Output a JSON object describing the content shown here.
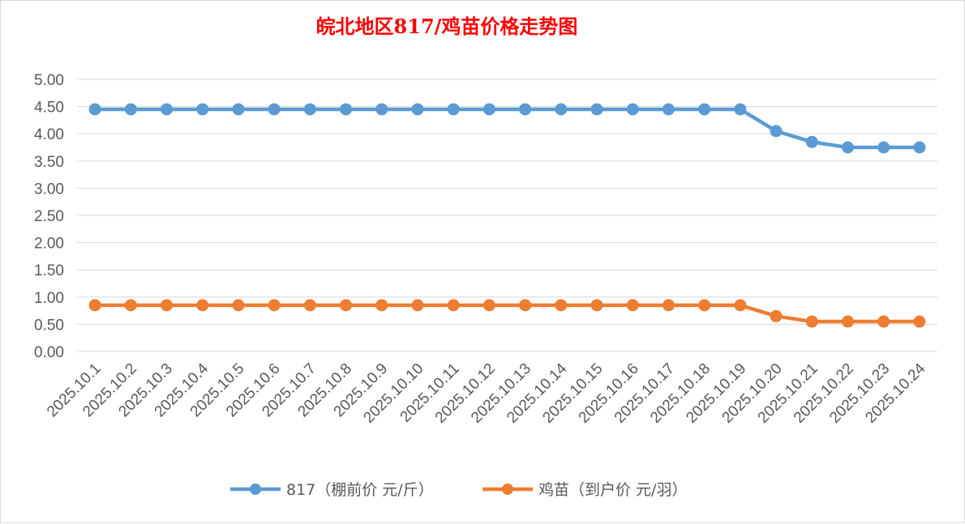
{
  "chart_data": {
    "type": "line",
    "title": "皖北地区817/鸡苗价格走势图",
    "xlabel": "",
    "ylabel": "",
    "ylim": [
      0,
      5
    ],
    "yticks": [
      "0.00",
      "0.50",
      "1.00",
      "1.50",
      "2.00",
      "2.50",
      "3.00",
      "3.50",
      "4.00",
      "4.50",
      "5.00"
    ],
    "grid": true,
    "legend_position": "bottom",
    "categories": [
      "2025.10.1",
      "2025.10.2",
      "2025.10.3",
      "2025.10.4",
      "2025.10.5",
      "2025.10.6",
      "2025.10.7",
      "2025.10.8",
      "2025.10.9",
      "2025.10.10",
      "2025.10.11",
      "2025.10.12",
      "2025.10.13",
      "2025.10.14",
      "2025.10.15",
      "2025.10.16",
      "2025.10.17",
      "2025.10.18",
      "2025.10.19",
      "2025.10.20",
      "2025.10.21",
      "2025.10.22",
      "2025.10.23",
      "2025.10.24"
    ],
    "series": [
      {
        "name": "817（棚前价 元/斤）",
        "color": "#5b9bd5",
        "values": [
          4.45,
          4.45,
          4.45,
          4.45,
          4.45,
          4.45,
          4.45,
          4.45,
          4.45,
          4.45,
          4.45,
          4.45,
          4.45,
          4.45,
          4.45,
          4.45,
          4.45,
          4.45,
          4.45,
          4.05,
          3.85,
          3.75,
          3.75,
          3.75
        ]
      },
      {
        "name": "鸡苗（到户价 元/羽）",
        "color": "#ed7d31",
        "values": [
          0.85,
          0.85,
          0.85,
          0.85,
          0.85,
          0.85,
          0.85,
          0.85,
          0.85,
          0.85,
          0.85,
          0.85,
          0.85,
          0.85,
          0.85,
          0.85,
          0.85,
          0.85,
          0.85,
          0.65,
          0.55,
          0.55,
          0.55,
          0.55
        ]
      }
    ]
  }
}
